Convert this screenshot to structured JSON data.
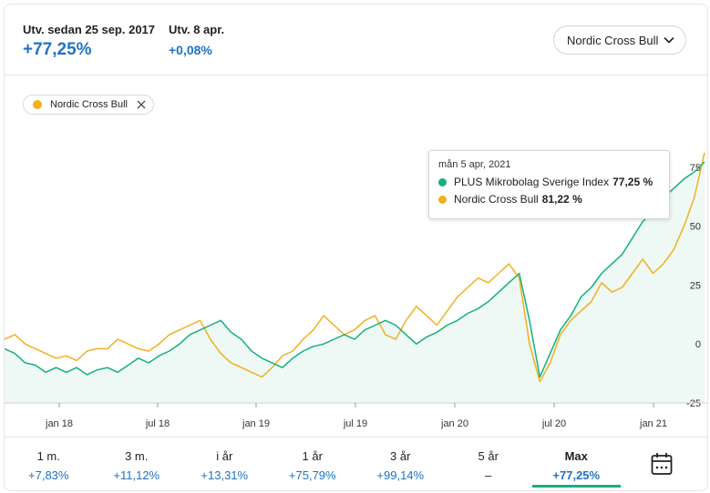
{
  "header": {
    "since_label": "Utv. sedan 25 sep. 2017",
    "since_value": "+77,25%",
    "day_label": "Utv. 8 apr.",
    "day_value": "+0,08%",
    "compare_dropdown": "Nordic Cross Bull"
  },
  "chip": {
    "label": "Nordic Cross Bull"
  },
  "tooltip": {
    "date": "mån 5 apr, 2021",
    "series": [
      {
        "name": "PLUS Mikrobolag Sverige Index",
        "value": "77,25 %",
        "color": "#15b07f"
      },
      {
        "name": "Nordic Cross Bull",
        "value": "81,22 %",
        "color": "#f2b01e"
      }
    ]
  },
  "chart_data": {
    "type": "line",
    "x_ticks": [
      "jan 18",
      "jul 18",
      "jan 19",
      "jul 19",
      "jan 20",
      "jul 20",
      "jan 21"
    ],
    "y_ticks": [
      "75",
      "50",
      "25",
      "0",
      "-25"
    ],
    "ylim": [
      -25,
      90
    ],
    "series": [
      {
        "name": "PLUS Mikrobolag Sverige Index",
        "color": "#15b07f",
        "values": [
          -2,
          -4,
          -8,
          -9,
          -12,
          -10,
          -12,
          -10,
          -13,
          -11,
          -10,
          -12,
          -9,
          -6,
          -8,
          -5,
          -3,
          0,
          4,
          6,
          8,
          10,
          5,
          2,
          -3,
          -6,
          -8,
          -10,
          -6,
          -3,
          -1,
          0,
          2,
          4,
          2,
          6,
          8,
          10,
          8,
          4,
          0,
          3,
          5,
          8,
          10,
          13,
          15,
          18,
          22,
          26,
          30,
          10,
          -14,
          -4,
          6,
          12,
          20,
          24,
          30,
          34,
          38,
          45,
          52,
          56,
          62,
          66,
          70,
          73,
          77.25
        ]
      },
      {
        "name": "Nordic Cross Bull",
        "color": "#f2b01e",
        "values": [
          2,
          4,
          0,
          -2,
          -4,
          -6,
          -5,
          -7,
          -3,
          -2,
          -2,
          2,
          0,
          -2,
          -3,
          0,
          4,
          6,
          8,
          10,
          2,
          -4,
          -8,
          -10,
          -12,
          -14,
          -10,
          -5,
          -3,
          2,
          6,
          12,
          8,
          4,
          6,
          10,
          12,
          4,
          2,
          10,
          16,
          12,
          8,
          14,
          20,
          24,
          28,
          26,
          30,
          34,
          28,
          0,
          -16,
          -8,
          4,
          10,
          14,
          18,
          26,
          22,
          24,
          30,
          36,
          30,
          34,
          40,
          50,
          62,
          81.22
        ]
      }
    ]
  },
  "periods": [
    {
      "name": "1 m.",
      "value": "+7,83%"
    },
    {
      "name": "3 m.",
      "value": "+11,12%"
    },
    {
      "name": "i år",
      "value": "+13,31%"
    },
    {
      "name": "1 år",
      "value": "+75,79%"
    },
    {
      "name": "3 år",
      "value": "+99,14%"
    },
    {
      "name": "5 år",
      "value": "–"
    },
    {
      "name": "Max",
      "value": "+77,25%"
    }
  ],
  "icons": {
    "calendar": "calendar-icon",
    "chevron": "chevron-down-icon",
    "close": "close-icon"
  }
}
